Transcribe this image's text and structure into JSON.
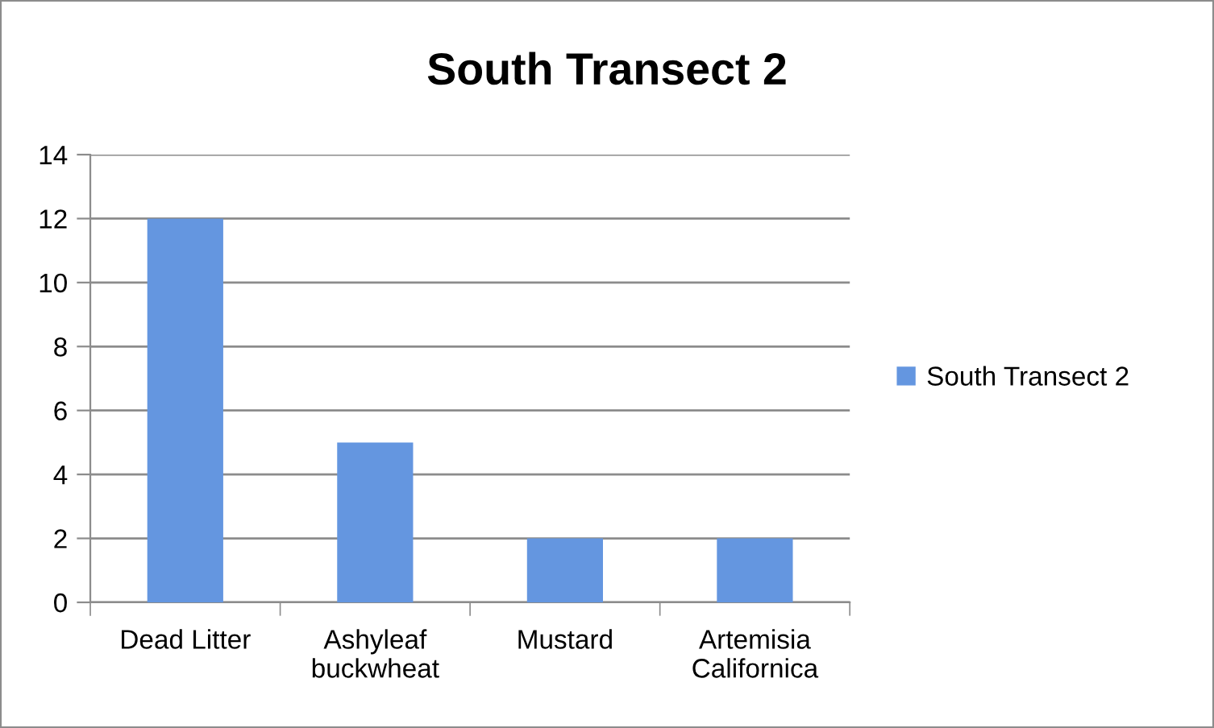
{
  "chart_data": {
    "type": "bar",
    "title": "South Transect 2",
    "categories": [
      "Dead Litter",
      "Ashyleaf buckwheat",
      "Mustard",
      "Artemisia Californica"
    ],
    "series": [
      {
        "name": "South Transect 2",
        "color": "#6496e0",
        "values": [
          12,
          5,
          2,
          2
        ]
      }
    ],
    "ylim": [
      0,
      14
    ],
    "yticks": [
      0,
      2,
      4,
      6,
      8,
      10,
      12,
      14
    ],
    "grid": "y",
    "legend": "right"
  }
}
